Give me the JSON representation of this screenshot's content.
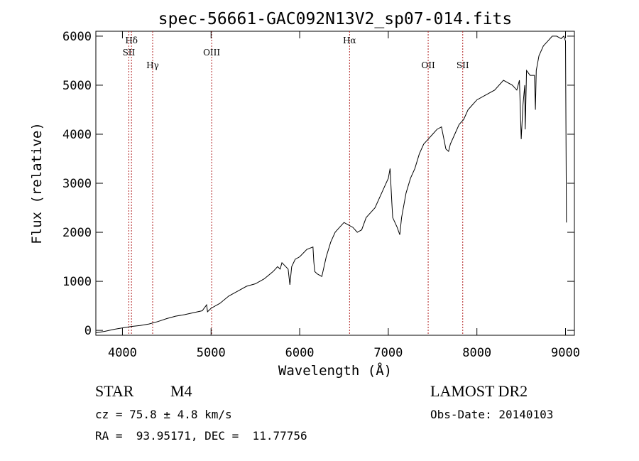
{
  "chart_data": {
    "type": "line",
    "title": "spec-56661-GAC092N13V2_sp07-014.fits",
    "xlabel": "Wavelength (Å)",
    "ylabel": "Flux (relative)",
    "xlim": [
      3700,
      9100
    ],
    "ylim": [
      -100,
      6100
    ],
    "xticks": [
      4000,
      5000,
      6000,
      7000,
      8000,
      9000
    ],
    "yticks": [
      0,
      1000,
      2000,
      3000,
      4000,
      5000,
      6000
    ],
    "grid": false,
    "line_color": "#000000",
    "marker_color": "#b22222",
    "lines": [
      {
        "label": "Hδ",
        "x": 4102,
        "row": 1
      },
      {
        "label": "SII",
        "x": 4072,
        "row": 2
      },
      {
        "label": "Hγ",
        "x": 4341,
        "row": 3
      },
      {
        "label": "OIII",
        "x": 5007,
        "row": 2
      },
      {
        "label": "Hα",
        "x": 6563,
        "row": 1
      },
      {
        "label": "OII",
        "x": 7450,
        "row": 3
      },
      {
        "label": "SII",
        "x": 7840,
        "row": 3
      }
    ],
    "series": [
      {
        "x": [
          3700,
          3800,
          3900,
          4000,
          4100,
          4200,
          4300,
          4400,
          4500,
          4600,
          4700,
          4800,
          4900,
          4950,
          4960,
          5000,
          5100,
          5200,
          5300,
          5400,
          5500,
          5600,
          5700,
          5750,
          5780,
          5800,
          5870,
          5890,
          5910,
          5950,
          6000,
          6080,
          6150,
          6160,
          6170,
          6200,
          6250,
          6300,
          6350,
          6400,
          6450,
          6500,
          6550,
          6600,
          6650,
          6700,
          6750,
          6800,
          6850,
          6900,
          6950,
          7000,
          7020,
          7040,
          7050,
          7100,
          7130,
          7150,
          7200,
          7250,
          7300,
          7350,
          7400,
          7450,
          7500,
          7550,
          7600,
          7650,
          7680,
          7700,
          7750,
          7800,
          7850,
          7900,
          7950,
          8000,
          8100,
          8200,
          8300,
          8400,
          8450,
          8480,
          8500,
          8520,
          8540,
          8545,
          8550,
          8560,
          8600,
          8650,
          8660,
          8665,
          8670,
          8700,
          8750,
          8800,
          8850,
          8900,
          8950,
          8980,
          9000,
          9010
        ],
        "y": [
          -50,
          -20,
          20,
          50,
          80,
          100,
          130,
          180,
          240,
          290,
          320,
          360,
          400,
          520,
          380,
          450,
          550,
          700,
          800,
          900,
          950,
          1050,
          1200,
          1300,
          1250,
          1380,
          1250,
          930,
          1300,
          1450,
          1500,
          1650,
          1700,
          1400,
          1200,
          1150,
          1100,
          1500,
          1800,
          2000,
          2100,
          2200,
          2150,
          2100,
          2000,
          2050,
          2300,
          2400,
          2500,
          2700,
          2900,
          3100,
          3300,
          2600,
          2300,
          2100,
          1950,
          2300,
          2800,
          3100,
          3300,
          3600,
          3800,
          3900,
          4000,
          4100,
          4150,
          3700,
          3650,
          3800,
          4000,
          4200,
          4300,
          4500,
          4600,
          4700,
          4800,
          4900,
          5100,
          5000,
          4900,
          5100,
          3900,
          4600,
          5000,
          4100,
          4500,
          5300,
          5200,
          5200,
          4500,
          4900,
          5300,
          5600,
          5800,
          5900,
          6000,
          6000,
          5950,
          6000,
          5900,
          2200
        ]
      }
    ]
  },
  "info": {
    "class_label": "STAR",
    "subclass_label": "M4",
    "survey_label": "LAMOST DR2",
    "cz_text": "cz = 75.8 ± 4.8 km/s",
    "obs_date_text": "Obs-Date: 20140103",
    "coords_text": "RA =  93.95171, DEC =  11.77756"
  }
}
